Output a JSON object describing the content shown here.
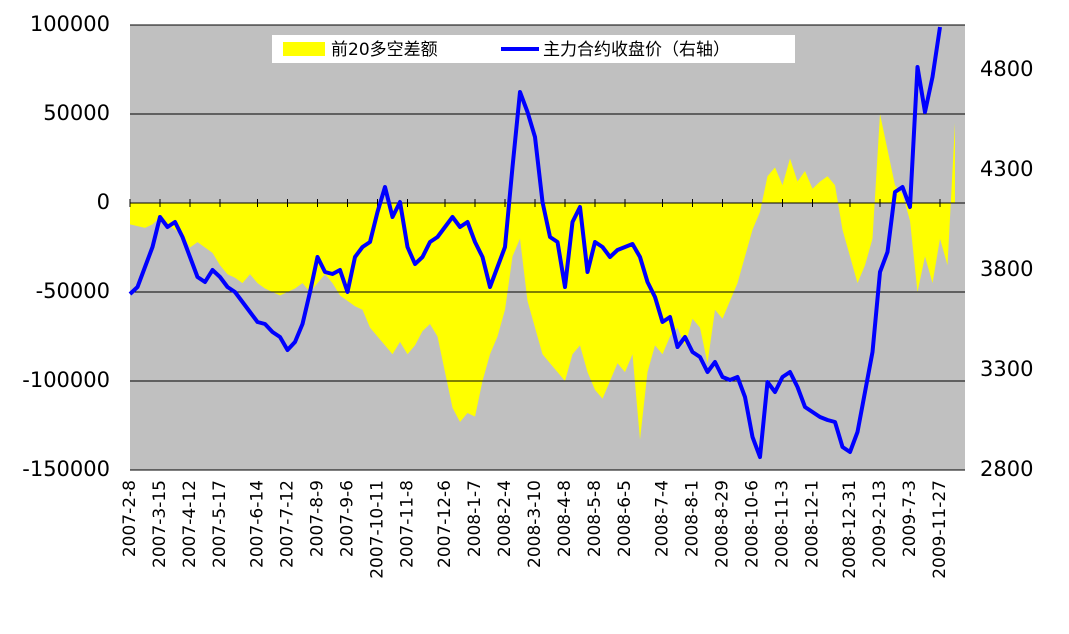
{
  "chart_data": {
    "type": "line",
    "categories": [
      "2007-2-8",
      null,
      null,
      null,
      "2007-3-15",
      null,
      null,
      null,
      "2007-4-12",
      null,
      null,
      null,
      "2007-5-17",
      null,
      null,
      null,
      null,
      "2007-6-14",
      null,
      null,
      null,
      "2007-7-12",
      null,
      null,
      null,
      "2007-8-9",
      null,
      null,
      null,
      "2007-9-6",
      null,
      null,
      null,
      "2007-10-11",
      null,
      null,
      null,
      "2007-11-8",
      null,
      null,
      null,
      null,
      "2007-12-6",
      null,
      null,
      null,
      "2008-1-7",
      null,
      null,
      null,
      "2008-2-4",
      null,
      null,
      null,
      "2008-3-10",
      null,
      null,
      null,
      "2008-4-8",
      null,
      null,
      null,
      "2008-5-8",
      null,
      null,
      null,
      "2008-6-5",
      null,
      null,
      null,
      null,
      "2008-7-4",
      null,
      null,
      null,
      "2008-8-1",
      null,
      null,
      null,
      "2008-8-29",
      null,
      null,
      null,
      "2008-10-6",
      null,
      null,
      null,
      "2008-11-3",
      null,
      null,
      null,
      "2008-12-1",
      null,
      null,
      null,
      null,
      "2008-12-31",
      null,
      null,
      null,
      "2009-2-13",
      null,
      null,
      null,
      "2009-7-3",
      null,
      null,
      null,
      "2009-11-27",
      null,
      null
    ],
    "series": [
      {
        "name": "前20多空差额",
        "type": "area",
        "color": "#ffff00",
        "values": [
          -12000,
          -13000,
          -14000,
          -12000,
          -8000,
          -12000,
          -15000,
          -18000,
          -25000,
          -22000,
          -25000,
          -28000,
          -35000,
          -40000,
          -42000,
          -45000,
          -40000,
          -45000,
          -48000,
          -50000,
          -52000,
          -50000,
          -48000,
          -45000,
          -50000,
          -45000,
          -40000,
          -45000,
          -52000,
          -55000,
          -58000,
          -60000,
          -70000,
          -75000,
          -80000,
          -85000,
          -78000,
          -85000,
          -80000,
          -72000,
          -68000,
          -75000,
          -95000,
          -115000,
          -123000,
          -118000,
          -120000,
          -100000,
          -85000,
          -75000,
          -60000,
          -30000,
          -20000,
          -55000,
          -70000,
          -85000,
          -90000,
          -95000,
          -100000,
          -85000,
          -80000,
          -95000,
          -105000,
          -110000,
          -100000,
          -90000,
          -95000,
          -85000,
          -133000,
          -95000,
          -80000,
          -85000,
          -75000,
          -70000,
          -80000,
          -65000,
          -70000,
          -90000,
          -60000,
          -65000,
          -55000,
          -45000,
          -30000,
          -15000,
          -5000,
          15000,
          20000,
          10000,
          25000,
          12000,
          18000,
          8000,
          12000,
          15000,
          10000,
          -15000,
          -30000,
          -45000,
          -35000,
          -20000,
          50000,
          30000,
          10000,
          5000,
          -10000,
          -50000,
          -30000,
          -45000,
          -20000,
          -35000,
          45000
        ]
      },
      {
        "name": "主力合约收盘价（右轴）",
        "type": "line",
        "axis": "y2",
        "color": "#0000ff",
        "values": [
          3680,
          3715,
          3815,
          3915,
          4065,
          4015,
          4040,
          3965,
          3865,
          3765,
          3740,
          3800,
          3765,
          3715,
          3690,
          3640,
          3590,
          3540,
          3530,
          3490,
          3465,
          3400,
          3440,
          3530,
          3690,
          3865,
          3790,
          3780,
          3800,
          3690,
          3865,
          3915,
          3940,
          4090,
          4215,
          4065,
          4140,
          3915,
          3830,
          3865,
          3940,
          3965,
          4015,
          4065,
          4015,
          4040,
          3940,
          3865,
          3715,
          3815,
          3915,
          4315,
          4690,
          4590,
          4465,
          4140,
          3965,
          3940,
          3715,
          4040,
          4115,
          3790,
          3940,
          3915,
          3865,
          3900,
          3915,
          3930,
          3865,
          3740,
          3665,
          3540,
          3565,
          3415,
          3465,
          3390,
          3365,
          3290,
          3340,
          3265,
          3250,
          3265,
          3165,
          2965,
          2865,
          3240,
          3190,
          3265,
          3290,
          3215,
          3115,
          3090,
          3065,
          3050,
          3040,
          2915,
          2890,
          2990,
          3190,
          3390,
          3790,
          3890,
          4190,
          4215,
          4115,
          4815,
          4590,
          4765,
          5015,
          null,
          null
        ]
      }
    ],
    "ylim": [
      -150000,
      100000
    ],
    "yticks": [
      -150000,
      -100000,
      -50000,
      0,
      50000,
      100000
    ],
    "y2lim": [
      2800,
      5025
    ],
    "y2ticks": [
      2800,
      3300,
      3800,
      4300,
      4800
    ],
    "grid": true,
    "legend": "top"
  }
}
